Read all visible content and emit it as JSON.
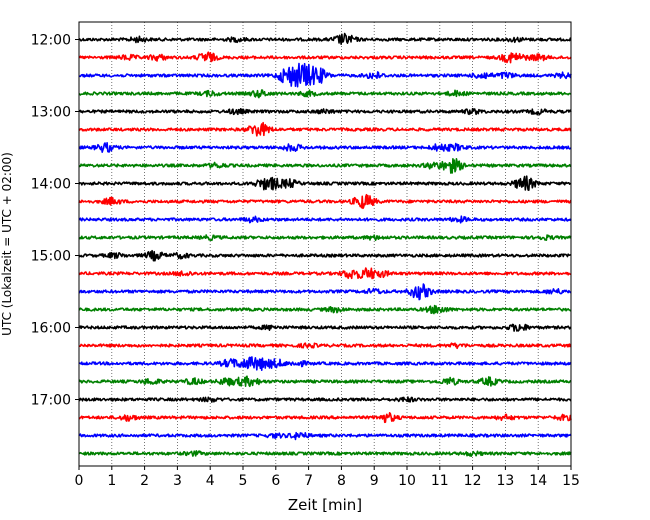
{
  "chart_data": {
    "type": "line",
    "title": "",
    "xlabel": "Zeit  [min]",
    "ylabel": "UTC (Lokalzeit = UTC + 02:00)",
    "xlim": [
      0,
      15
    ],
    "x_ticks": [
      0,
      1,
      2,
      3,
      4,
      5,
      6,
      7,
      8,
      9,
      10,
      11,
      12,
      13,
      14,
      15
    ],
    "x_grid": "dotted vertical at each minute",
    "y_ticks": [
      "12:00",
      "13:00",
      "14:00",
      "15:00",
      "16:00",
      "17:00"
    ],
    "trace_interval_min": 15,
    "start_time": "12:00",
    "color_cycle": [
      "#000000",
      "#ff0000",
      "#0000ff",
      "#008000"
    ],
    "traces": [
      {
        "time": "12:00",
        "color": "#000000",
        "events": [
          [
            1.8,
            2
          ],
          [
            4.8,
            1.5
          ],
          [
            8.0,
            3
          ],
          [
            8.2,
            2.5
          ],
          [
            13.3,
            1.5
          ]
        ]
      },
      {
        "time": "12:15",
        "color": "#ff0000",
        "events": [
          [
            1.5,
            2
          ],
          [
            2.4,
            2.5
          ],
          [
            3.9,
            5
          ],
          [
            13.1,
            3.5
          ],
          [
            13.4,
            2.5
          ],
          [
            14.0,
            2.5
          ]
        ]
      },
      {
        "time": "12:30",
        "color": "#0000ff",
        "events": [
          [
            6.3,
            6
          ],
          [
            6.6,
            7
          ],
          [
            6.9,
            9
          ],
          [
            7.3,
            7
          ],
          [
            9.0,
            3
          ],
          [
            12.3,
            3
          ],
          [
            13.0,
            2.5
          ],
          [
            14.8,
            2
          ]
        ]
      },
      {
        "time": "12:45",
        "color": "#008000",
        "events": [
          [
            4.0,
            2
          ],
          [
            5.5,
            3
          ],
          [
            7.0,
            2
          ],
          [
            11.5,
            2
          ]
        ]
      },
      {
        "time": "13:00",
        "color": "#000000",
        "events": [
          [
            4.8,
            2
          ],
          [
            7.5,
            1.5
          ],
          [
            12.0,
            2
          ],
          [
            14.0,
            2
          ]
        ]
      },
      {
        "time": "13:15",
        "color": "#ff0000",
        "events": [
          [
            5.4,
            4
          ],
          [
            5.6,
            3.5
          ]
        ]
      },
      {
        "time": "13:30",
        "color": "#0000ff",
        "events": [
          [
            0.8,
            4
          ],
          [
            6.5,
            3
          ],
          [
            11.0,
            3
          ],
          [
            11.5,
            2.5
          ]
        ]
      },
      {
        "time": "13:45",
        "color": "#008000",
        "events": [
          [
            4.2,
            2
          ],
          [
            10.8,
            2.5
          ],
          [
            11.3,
            4.5
          ],
          [
            11.5,
            3
          ]
        ]
      },
      {
        "time": "14:00",
        "color": "#000000",
        "events": [
          [
            5.6,
            3.5
          ],
          [
            5.9,
            4.5
          ],
          [
            6.4,
            3.5
          ],
          [
            13.5,
            4
          ],
          [
            13.7,
            3.5
          ]
        ]
      },
      {
        "time": "14:15",
        "color": "#ff0000",
        "events": [
          [
            1.0,
            3
          ],
          [
            8.6,
            4
          ],
          [
            8.8,
            3.5
          ]
        ]
      },
      {
        "time": "14:30",
        "color": "#0000ff",
        "events": [
          [
            5.3,
            2
          ],
          [
            11.6,
            2
          ]
        ]
      },
      {
        "time": "14:45",
        "color": "#008000",
        "events": [
          [
            4.0,
            1.5
          ],
          [
            9.0,
            1.5
          ],
          [
            14.2,
            1.5
          ]
        ]
      },
      {
        "time": "15:00",
        "color": "#000000",
        "events": [
          [
            1.1,
            2
          ],
          [
            2.3,
            4
          ],
          [
            3.1,
            2
          ]
        ]
      },
      {
        "time": "15:15",
        "color": "#ff0000",
        "events": [
          [
            3.2,
            2
          ],
          [
            8.3,
            4.5
          ],
          [
            8.8,
            4.5
          ],
          [
            9.2,
            2.5
          ]
        ]
      },
      {
        "time": "15:30",
        "color": "#0000ff",
        "events": [
          [
            9.0,
            2
          ],
          [
            10.3,
            4.5
          ],
          [
            10.5,
            4
          ],
          [
            14.5,
            2
          ]
        ]
      },
      {
        "time": "15:45",
        "color": "#008000",
        "events": [
          [
            7.8,
            2
          ],
          [
            10.8,
            2
          ],
          [
            11.0,
            2
          ]
        ]
      },
      {
        "time": "16:00",
        "color": "#000000",
        "events": [
          [
            5.8,
            1.5
          ],
          [
            13.4,
            3.5
          ]
        ]
      },
      {
        "time": "16:15",
        "color": "#ff0000",
        "events": [
          [
            7.0,
            1.5
          ],
          [
            11.5,
            1.5
          ]
        ]
      },
      {
        "time": "16:30",
        "color": "#0000ff",
        "events": [
          [
            4.6,
            3.5
          ],
          [
            5.1,
            4.5
          ],
          [
            5.5,
            5.5
          ],
          [
            6.0,
            3.5
          ],
          [
            6.7,
            2
          ]
        ]
      },
      {
        "time": "16:45",
        "color": "#008000",
        "events": [
          [
            2.2,
            2.5
          ],
          [
            3.5,
            2.5
          ],
          [
            4.5,
            3
          ],
          [
            5.0,
            3
          ],
          [
            5.3,
            2.5
          ],
          [
            11.3,
            3
          ],
          [
            12.5,
            3.5
          ]
        ]
      },
      {
        "time": "17:00",
        "color": "#000000",
        "events": [
          [
            4.0,
            1.5
          ],
          [
            10.0,
            1.5
          ]
        ]
      },
      {
        "time": "17:15",
        "color": "#ff0000",
        "events": [
          [
            1.5,
            2.5
          ],
          [
            9.4,
            4
          ],
          [
            13.0,
            2
          ],
          [
            14.8,
            2
          ]
        ]
      },
      {
        "time": "17:30",
        "color": "#0000ff",
        "events": [
          [
            6.0,
            1.5
          ],
          [
            6.7,
            3
          ]
        ]
      },
      {
        "time": "17:45",
        "color": "#008000",
        "events": [
          [
            3.5,
            1.5
          ],
          [
            12.0,
            1.5
          ]
        ]
      }
    ]
  }
}
